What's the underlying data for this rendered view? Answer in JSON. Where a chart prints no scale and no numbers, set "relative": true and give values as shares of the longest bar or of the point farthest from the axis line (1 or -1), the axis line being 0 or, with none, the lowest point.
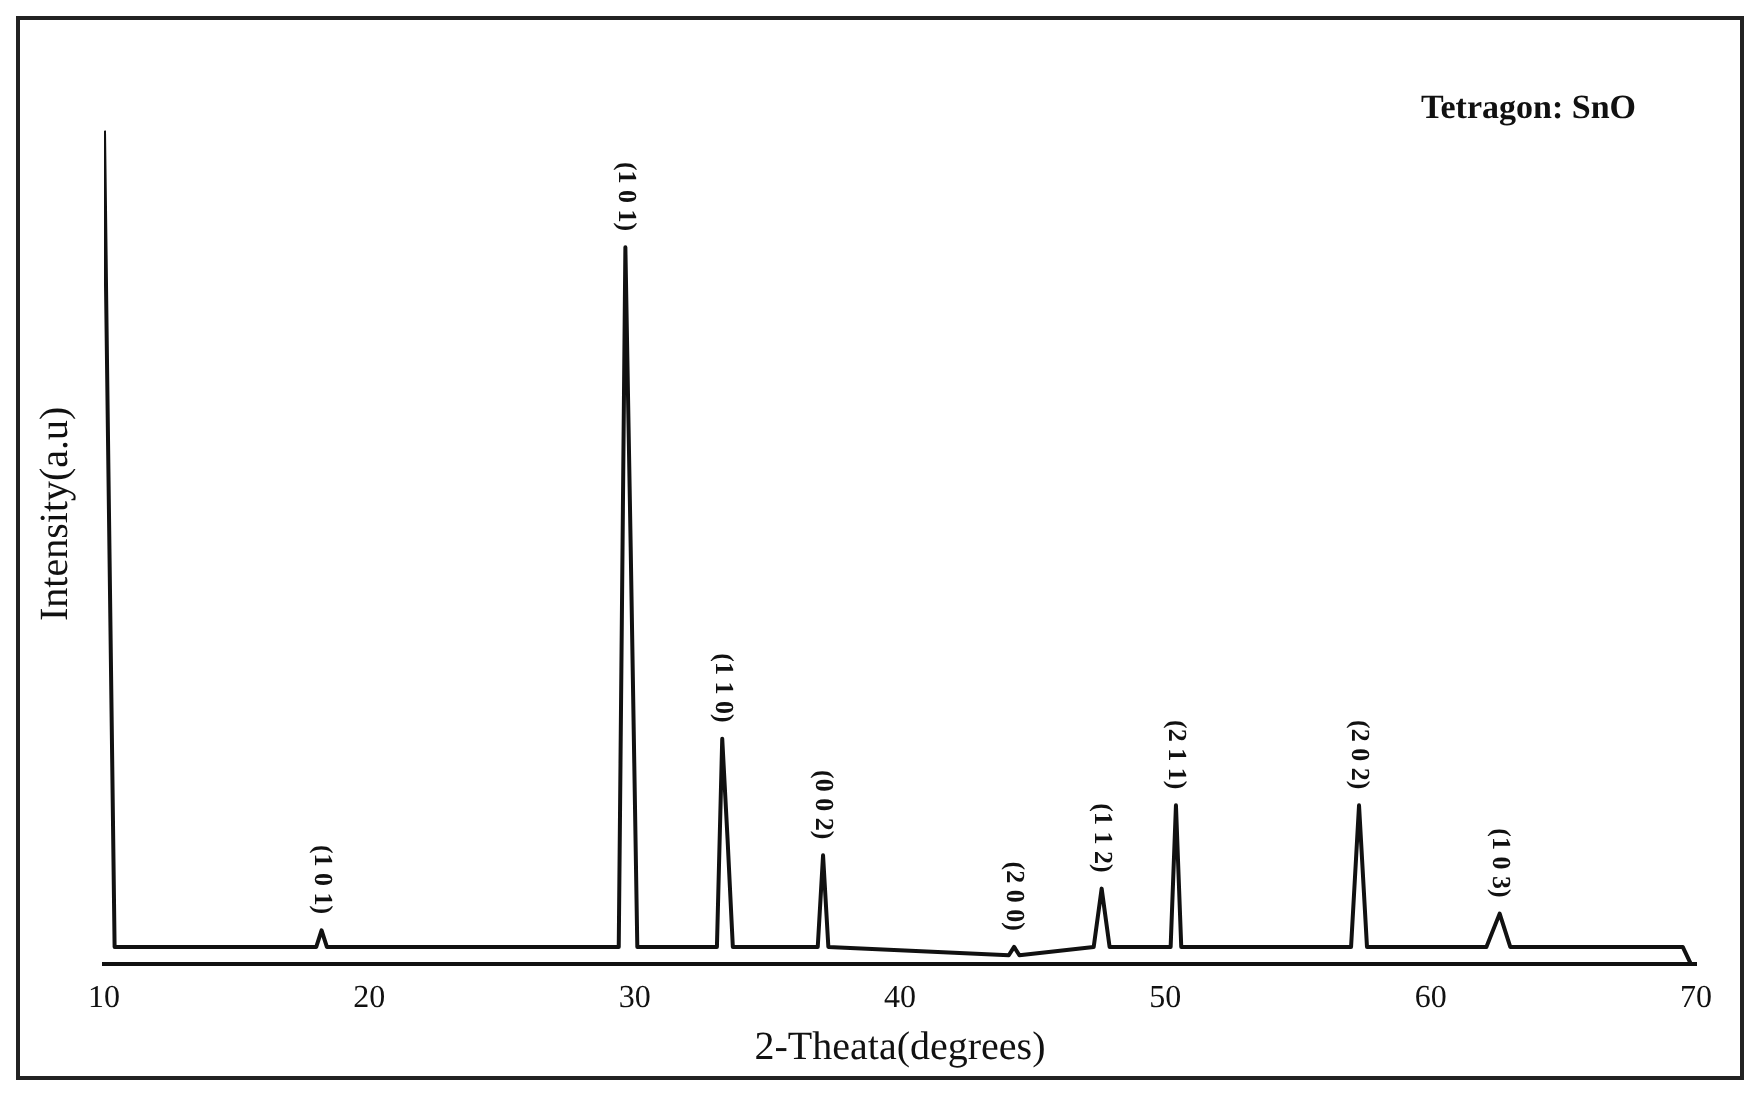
{
  "chart_data": {
    "type": "line",
    "relative": true,
    "xlabel": "2-Theata(degrees)",
    "ylabel": "Intensity(a.u)",
    "xlim": [
      10,
      70
    ],
    "xticks": [
      10,
      20,
      30,
      40,
      50,
      60,
      70
    ],
    "grid": false,
    "legend": false,
    "marker": "none",
    "line_style": "solid",
    "annotations": [
      "Tetragon: SnO",
      {
        "text": "(1 0 1)",
        "x": 18.2,
        "y": 0.04
      },
      {
        "text": "(1 0 1)",
        "x": 29.65,
        "y": 0.86
      },
      {
        "text": "(1 1 0)",
        "x": 33.3,
        "y": 0.27
      },
      {
        "text": "(0 0 2)",
        "x": 37.1,
        "y": 0.13
      },
      {
        "text": "(2 0 0)",
        "x": 44.3,
        "y": 0.02
      },
      {
        "text": "(1 1 2)",
        "x": 47.6,
        "y": 0.09
      },
      {
        "text": "(2 1 1)",
        "x": 50.4,
        "y": 0.19
      },
      {
        "text": "(2 0 2)",
        "x": 57.3,
        "y": 0.19
      },
      {
        "text": "(1 0 3)",
        "x": 62.6,
        "y": 0.06
      }
    ],
    "series": [
      {
        "color": "#111111",
        "x": [
          10,
          10.4,
          18.0,
          18.2,
          18.4,
          29.4,
          29.65,
          29.85,
          30.1,
          33.1,
          33.3,
          33.5,
          33.7,
          36.9,
          37.1,
          37.3,
          44.1,
          44.3,
          44.5,
          47.3,
          47.6,
          47.9,
          50.2,
          50.4,
          50.6,
          57.0,
          57.3,
          57.6,
          62.1,
          62.6,
          63.0,
          69.5,
          69.8
        ],
        "values": [
          1,
          0.02,
          0.02,
          0.04,
          0.02,
          0.02,
          0.86,
          0.5,
          0.02,
          0.02,
          0.27,
          0.15,
          0.02,
          0.02,
          0.13,
          0.02,
          0.01,
          0.02,
          0.01,
          0.02,
          0.09,
          0.02,
          0.02,
          0.19,
          0.02,
          0.02,
          0.19,
          0.02,
          0.02,
          0.06,
          0.02,
          0.02,
          0
        ]
      }
    ]
  }
}
